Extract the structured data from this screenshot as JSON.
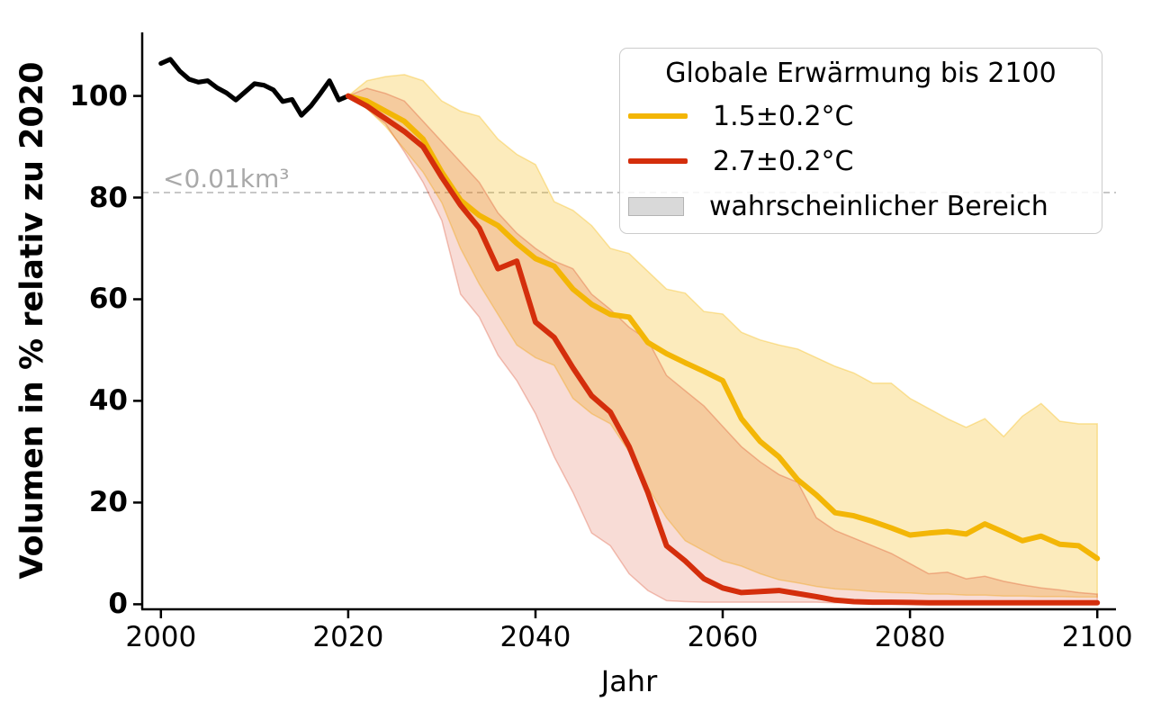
{
  "chart_data": {
    "type": "line",
    "xlabel": "Jahr",
    "ylabel": "Volumen in % relativ zu 2020",
    "xlim": [
      1998,
      2102
    ],
    "ylim": [
      -1,
      112.5
    ],
    "grid": false,
    "x_ticks": [
      2000,
      2020,
      2040,
      2060,
      2080,
      2100
    ],
    "x_tick_labels": [
      "2000",
      "2020",
      "2040",
      "2060",
      "2080",
      "2100"
    ],
    "y_ticks": [
      0,
      20,
      40,
      60,
      80,
      100
    ],
    "y_tick_labels": [
      "0",
      "20",
      "40",
      "60",
      "80",
      "100"
    ],
    "threshold": {
      "value": 81,
      "label": "<0.01km³",
      "line_color": "#bbbbbb"
    },
    "legend": {
      "title": "Globale Erwärmung bis 2100",
      "position": "upper right",
      "items": [
        {
          "label": "1.5±0.2°C",
          "type": "line",
          "color": "#f3b606"
        },
        {
          "label": "2.7±0.2°C",
          "type": "line",
          "color": "#d42e0c"
        },
        {
          "label": "wahrscheinlicher Bereich",
          "type": "patch",
          "color": "#d9d9d9"
        }
      ]
    },
    "colors": {
      "historical": "#000000",
      "line_15": "#f3b606",
      "line_27": "#d42e0c",
      "band_15_fill_opacity": 0.27,
      "band_27_fill_opacity": 0.17
    },
    "series": [
      {
        "name": "historical",
        "x": [
          2000,
          2001,
          2002,
          2003,
          2004,
          2005,
          2006,
          2007,
          2008,
          2009,
          2010,
          2011,
          2012,
          2013,
          2014,
          2015,
          2016,
          2017,
          2018,
          2019,
          2020
        ],
        "values": [
          106.4,
          107.2,
          104.9,
          103.3,
          102.7,
          103.0,
          101.6,
          100.6,
          99.2,
          100.8,
          102.4,
          102.1,
          101.2,
          98.9,
          99.3,
          96.2,
          98.0,
          100.4,
          103.0,
          99.2,
          100.0
        ]
      },
      {
        "name": "scenario_1.5C",
        "x": [
          2020,
          2022,
          2024,
          2026,
          2028,
          2030,
          2032,
          2034,
          2036,
          2038,
          2040,
          2042,
          2044,
          2046,
          2048,
          2050,
          2052,
          2054,
          2056,
          2058,
          2060,
          2062,
          2064,
          2066,
          2068,
          2070,
          2072,
          2074,
          2076,
          2078,
          2080,
          2082,
          2084,
          2086,
          2088,
          2090,
          2092,
          2094,
          2096,
          2098,
          2100
        ],
        "values": [
          100,
          99.0,
          97.0,
          95.0,
          91.5,
          85.0,
          79.5,
          76.5,
          74.5,
          71.0,
          68.0,
          66.5,
          62.0,
          59.0,
          57.0,
          56.5,
          51.5,
          49.3,
          47.5,
          45.8,
          44.0,
          36.5,
          32.0,
          29.0,
          24.5,
          21.5,
          18.0,
          17.4,
          16.3,
          15.0,
          13.6,
          14.0,
          14.3,
          13.8,
          15.8,
          14.2,
          12.5,
          13.4,
          11.8,
          11.5,
          9.0
        ],
        "band_upper": [
          100,
          103,
          103.8,
          104.2,
          103,
          99,
          97,
          96,
          91.5,
          88.5,
          86.5,
          79.2,
          77.5,
          74.5,
          70,
          69,
          65.5,
          62,
          61.2,
          57.6,
          57.1,
          53.5,
          52,
          51,
          50.2,
          48.5,
          46.8,
          45.5,
          43.5,
          43.5,
          40.5,
          38.5,
          36.5,
          34.8,
          36.5,
          33,
          37,
          39.5,
          36,
          35.5,
          35.5
        ],
        "band_lower": [
          100,
          97.5,
          94,
          89.5,
          85,
          79,
          70,
          63,
          57,
          51,
          48.5,
          47,
          40.5,
          37.5,
          35.5,
          30,
          23,
          17,
          12.5,
          10.5,
          8.5,
          7.5,
          6,
          4.8,
          4.2,
          3.5,
          3,
          2.8,
          2.5,
          2.3,
          2.2,
          2,
          2,
          1.8,
          1.8,
          1.6,
          1.6,
          1.5,
          1.5,
          1.4,
          1.4
        ]
      },
      {
        "name": "scenario_2.7C",
        "x": [
          2020,
          2022,
          2024,
          2026,
          2028,
          2030,
          2032,
          2034,
          2036,
          2038,
          2040,
          2042,
          2044,
          2046,
          2048,
          2050,
          2052,
          2054,
          2056,
          2058,
          2060,
          2062,
          2064,
          2066,
          2068,
          2070,
          2072,
          2074,
          2076,
          2078,
          2080,
          2082,
          2084,
          2086,
          2088,
          2090,
          2092,
          2094,
          2096,
          2098,
          2100
        ],
        "values": [
          100,
          98.0,
          95.5,
          93.0,
          90.0,
          84.0,
          78.5,
          74.0,
          66.0,
          67.5,
          55.5,
          52.5,
          46.5,
          41.0,
          37.8,
          31.0,
          22.0,
          11.5,
          8.5,
          5.0,
          3.2,
          2.3,
          2.5,
          2.7,
          2.1,
          1.5,
          0.8,
          0.5,
          0.4,
          0.4,
          0.35,
          0.3,
          0.3,
          0.3,
          0.3,
          0.3,
          0.3,
          0.3,
          0.3,
          0.3,
          0.3
        ],
        "band_upper": [
          100,
          101.5,
          100.5,
          99,
          95,
          91,
          87,
          83,
          77,
          73,
          70,
          67.5,
          66,
          61,
          58,
          54.5,
          52,
          45,
          42,
          39,
          35,
          31,
          28,
          25.5,
          24,
          17,
          14.5,
          13,
          11.5,
          10,
          8,
          6,
          6.3,
          5,
          5.5,
          4.5,
          3.8,
          3.2,
          2.8,
          2.3,
          2
        ],
        "band_lower": [
          100,
          97.5,
          94.5,
          89,
          83,
          75.5,
          61,
          56.5,
          49,
          44,
          37.5,
          29,
          22,
          14,
          11.5,
          6,
          2.7,
          0.7,
          0.5,
          0.4,
          0.4,
          0.4,
          0.4,
          0.4,
          0.4,
          0.4,
          0.3,
          0.3,
          0.3,
          0.3,
          0.3,
          0.3,
          0.3,
          0.3,
          0.3,
          0.3,
          0.3,
          0.3,
          0.3,
          0.3,
          0.3
        ]
      }
    ]
  }
}
